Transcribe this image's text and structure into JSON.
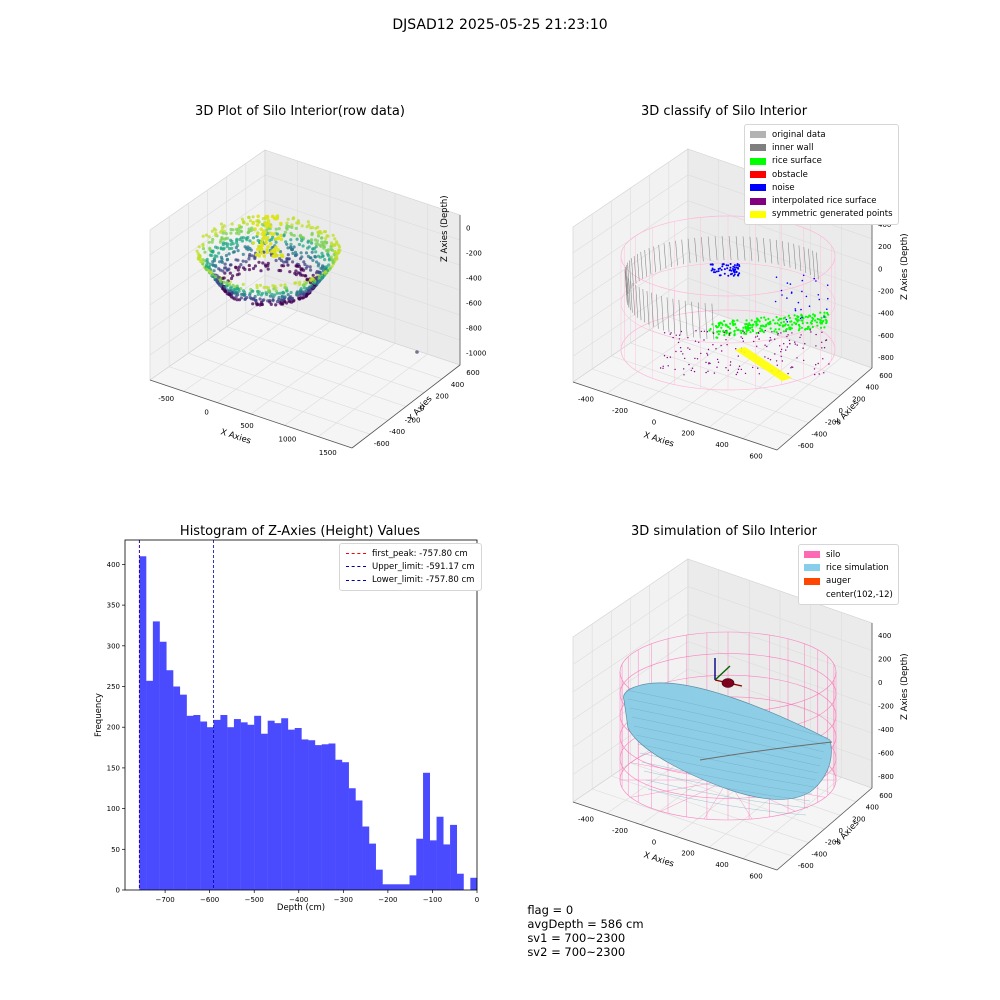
{
  "suptitle": "DJSAD12 2025-05-25 21:23:10",
  "footer": {
    "flag": "flag = 0",
    "avg_depth": "avgDepth = 586 cm",
    "sv1": "sv1 = 700~2300",
    "sv2": "sv2 = 700~2300"
  },
  "chart_data": [
    {
      "type": "scatter",
      "title": "3D Plot of Silo Interior(row data)",
      "xlabel": "X Axies",
      "ylabel": "Y Axies",
      "zlabel": "Z Axies (Depth)",
      "x_ticks": [
        "-500",
        "0",
        "500",
        "1000",
        "1500"
      ],
      "y_ticks": [
        "600",
        "400",
        "200",
        "0",
        "-200",
        "-400",
        "-600"
      ],
      "z_ticks": [
        "0",
        "-200",
        "-400",
        "-600",
        "-800",
        "-1000"
      ],
      "colormap": "viridis"
    },
    {
      "type": "scatter",
      "title": "3D classify of Silo Interior",
      "xlabel": "X Axies",
      "ylabel": "Y Axies",
      "zlabel": "Z Axies (Depth)",
      "x_ticks": [
        "-400",
        "-200",
        "0",
        "200",
        "400",
        "600"
      ],
      "y_ticks": [
        "600",
        "400",
        "200",
        "0",
        "-200",
        "-400",
        "-600"
      ],
      "z_ticks": [
        "400",
        "200",
        "0",
        "-200",
        "-400",
        "-600",
        "-800"
      ],
      "legend": [
        {
          "label": "original data",
          "color": "#b3b3b3"
        },
        {
          "label": "inner wall",
          "color": "#7f7f7f"
        },
        {
          "label": "rice surface",
          "color": "#00ff00"
        },
        {
          "label": "obstacle",
          "color": "#ff0000"
        },
        {
          "label": "noise",
          "color": "#0000ff"
        },
        {
          "label": "interpolated rice surface",
          "color": "#800080"
        },
        {
          "label": "symmetric generated points",
          "color": "#ffff00"
        }
      ]
    },
    {
      "type": "bar",
      "title": "Histogram of Z-Axies (Height) Values",
      "xlabel": "Depth (cm)",
      "ylabel": "Frequency",
      "xlim": [
        -790,
        0
      ],
      "ylim": [
        0,
        430
      ],
      "x_ticks": [
        -700,
        -600,
        -500,
        -400,
        -300,
        -200,
        -100,
        0
      ],
      "y_ticks": [
        0,
        50,
        100,
        150,
        200,
        250,
        300,
        350,
        400
      ],
      "bin_width": 15.16,
      "bin_start": -757.8,
      "values": [
        410,
        257,
        330,
        305,
        270,
        250,
        240,
        214,
        215,
        207,
        200,
        209,
        215,
        200,
        210,
        206,
        203,
        214,
        192,
        208,
        205,
        211,
        197,
        199,
        185,
        184,
        178,
        179,
        180,
        160,
        157,
        125,
        110,
        78,
        57,
        25,
        7,
        7,
        7,
        7,
        18,
        63,
        144,
        61,
        90,
        56,
        80,
        20,
        0,
        15
      ],
      "bar_color": "#4a4aff",
      "vlines": [
        {
          "label": "first_peak: -757.80 cm",
          "x": -757.8,
          "color": "#ff0000"
        },
        {
          "label": "Upper_limit: -591.17 cm",
          "x": -591.17,
          "color": "#0000aa"
        },
        {
          "label": "Lower_limit: -757.80 cm",
          "x": -757.8,
          "color": "#0000aa"
        }
      ],
      "legend_position": "top-right"
    },
    {
      "type": "scatter",
      "title": "3D simulation of Silo Interior",
      "xlabel": "X Axies",
      "ylabel": "Y Axies",
      "zlabel": "Z Axies (Depth)",
      "x_ticks": [
        "-400",
        "-200",
        "0",
        "200",
        "400",
        "600"
      ],
      "y_ticks": [
        "600",
        "400",
        "200",
        "0",
        "-200",
        "-400",
        "-600"
      ],
      "z_ticks": [
        "400",
        "200",
        "0",
        "-200",
        "-400",
        "-600",
        "-800"
      ],
      "legend": [
        {
          "label": "silo",
          "color": "#ff69b4"
        },
        {
          "label": "rice simulation",
          "color": "#87ceeb"
        },
        {
          "label": "auger",
          "color": "#ff4500"
        },
        {
          "label": "center(102,-12)",
          "color": ""
        }
      ]
    }
  ]
}
